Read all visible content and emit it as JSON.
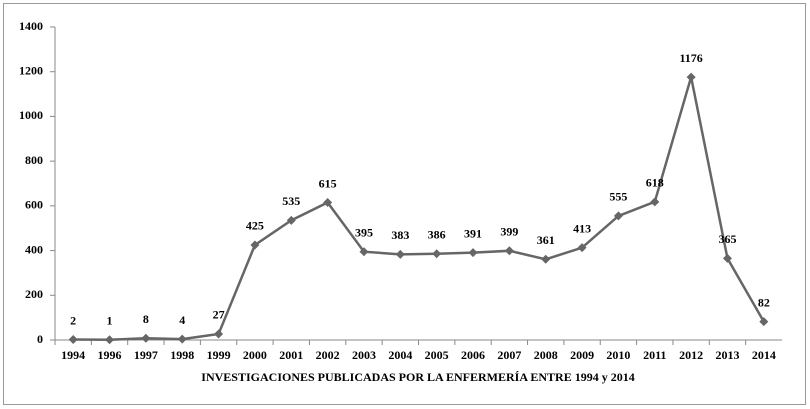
{
  "chart_data": {
    "type": "line",
    "x_label": "INVESTIGACIONES  PUBLICADAS POR LA ENFERMERÍA ENTRE 1994 y 2014",
    "categories": [
      "1994",
      "1996",
      "1997",
      "1998",
      "1999",
      "2000",
      "2001",
      "2002",
      "2003",
      "2004",
      "2005",
      "2006",
      "2007",
      "2008",
      "2009",
      "2010",
      "2011",
      "2012",
      "2013",
      "2014"
    ],
    "values": [
      2,
      1,
      8,
      4,
      27,
      425,
      535,
      615,
      395,
      383,
      386,
      391,
      399,
      361,
      413,
      555,
      618,
      1176,
      365,
      82
    ],
    "color": "#666666",
    "ylim": [
      0,
      1400
    ],
    "yticks": [
      0,
      200,
      400,
      600,
      800,
      1000,
      1200,
      1400
    ]
  }
}
